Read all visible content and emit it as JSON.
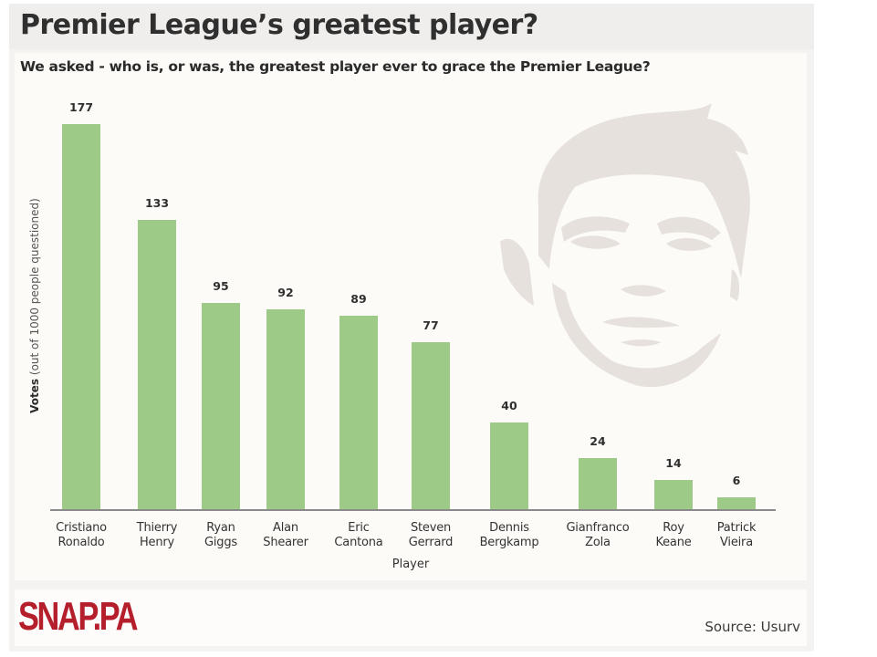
{
  "header": {
    "title": "Premier League’s greatest player?",
    "subtitle": "We asked - who is, or was, the greatest player ever to grace the Premier League?"
  },
  "footer": {
    "logo": "SNAP.PA",
    "source": "Source: Usurv"
  },
  "colors": {
    "bar": "#9dcb87",
    "logo": "#b51f2c",
    "background": "#fcfbf8"
  },
  "chart_data": {
    "type": "bar",
    "title": "Premier League’s greatest player?",
    "subtitle": "We asked - who is, or was, the greatest player ever to grace the Premier League?",
    "xlabel": "Player",
    "ylabel": "Votes (out of 1000 people questioned)",
    "ylabel_bold": "Votes",
    "ylabel_rest": "(out of 1000 people questioned)",
    "categories": [
      "Cristiano Ronaldo",
      "Thierry Henry",
      "Ryan Giggs",
      "Alan Shearer",
      "Eric Cantona",
      "Steven Gerrard",
      "Dennis Bergkamp",
      "Gianfranco Zola",
      "Roy Keane",
      "Patrick Vieira"
    ],
    "category_lines": [
      [
        "Cristiano",
        "Ronaldo"
      ],
      [
        "Thierry",
        "Henry"
      ],
      [
        "Ryan",
        "Giggs"
      ],
      [
        "Alan",
        "Shearer"
      ],
      [
        "Eric",
        "Cantona"
      ],
      [
        "Steven",
        "Gerrard"
      ],
      [
        "Dennis",
        "Bergkamp"
      ],
      [
        "Gianfranco",
        "Zola"
      ],
      [
        "Roy",
        "Keane"
      ],
      [
        "Patrick",
        "Vieira"
      ]
    ],
    "values": [
      177,
      133,
      95,
      92,
      89,
      77,
      40,
      24,
      14,
      6
    ],
    "ylim": [
      0,
      180
    ],
    "grid": false,
    "data_labels": true,
    "legend": null,
    "source": "Usurv"
  }
}
